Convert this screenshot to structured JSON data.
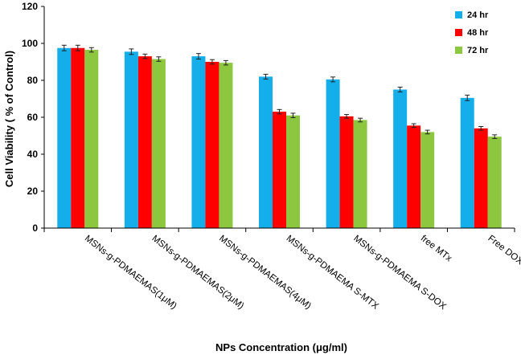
{
  "chart_data": {
    "type": "bar",
    "title": "",
    "xlabel": "NPs Concentration (μg/ml)",
    "ylabel": "Cell Viability ( % of Control)",
    "ylim": [
      0,
      120
    ],
    "yticks": [
      0,
      20,
      40,
      60,
      80,
      100,
      120
    ],
    "legend_position": "top-right",
    "categories": [
      "MSNs-g-PDMAEMAS(1μM)",
      "MSNs-g-PDMAEMAS(2μM)",
      "MSNs-g-PDMAEMAS(4μM)",
      "MSNs-g-PDMAEMA S-MTX",
      "MSNs-g-PDMAEMA S-DOX",
      "free MTx",
      "Free DOX"
    ],
    "series": [
      {
        "name": "24 hr",
        "color": "#14AEEB",
        "values": [
          97.5,
          95.5,
          93,
          82,
          80.5,
          75,
          70.5
        ],
        "errors": [
          1.5,
          1.5,
          1.5,
          1.3,
          1.3,
          1.3,
          1.5
        ]
      },
      {
        "name": "48 hr",
        "color": "#FF0000",
        "values": [
          97.5,
          93,
          90,
          63,
          60.5,
          55.5,
          54
        ],
        "errors": [
          1.5,
          1.2,
          1.2,
          1.2,
          1.0,
          1.0,
          1.0
        ]
      },
      {
        "name": "72 hr",
        "color": "#8DC63F",
        "values": [
          96.5,
          91.5,
          89.5,
          61,
          58.5,
          52,
          49.5
        ],
        "errors": [
          1.2,
          1.2,
          1.2,
          1.2,
          1.0,
          1.0,
          1.0
        ]
      }
    ]
  }
}
